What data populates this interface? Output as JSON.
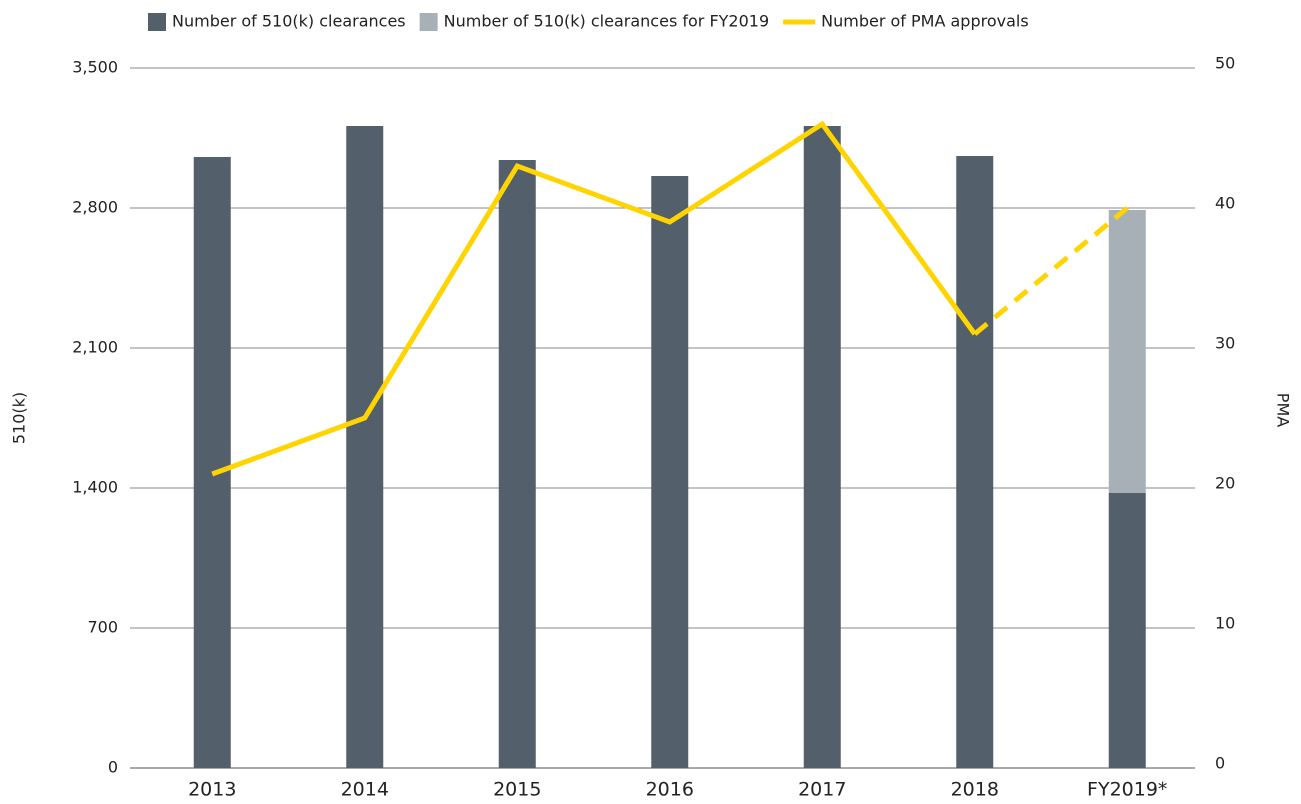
{
  "chart_data": {
    "type": "bar",
    "categories": [
      "2013",
      "2014",
      "2015",
      "2016",
      "2017",
      "2018",
      "FY2019*"
    ],
    "series": [
      {
        "name": "Number of 510(k) clearances",
        "color": "#535f6a",
        "values": [
          3055,
          3210,
          3040,
          2960,
          3210,
          3060,
          1375
        ]
      },
      {
        "name": "Number of 510(k) clearances for FY2019",
        "color": "#a7b0b6",
        "values": [
          null,
          null,
          null,
          null,
          null,
          null,
          1415
        ]
      },
      {
        "name": "Number of PMA approvals",
        "color": "#ffd400",
        "type": "line",
        "axis": "y2",
        "values": [
          21,
          25,
          43,
          39,
          46,
          31,
          40
        ],
        "projected": [
          false,
          false,
          false,
          false,
          false,
          false,
          true
        ]
      }
    ],
    "stacked": true,
    "ylabel": "510(k)",
    "y2label": "PMA",
    "ylim": [
      0,
      3500
    ],
    "yticks": [
      0,
      {
        "value": 700,
        "label": "700"
      },
      {
        "value": 1400,
        "label": "1,400"
      },
      {
        "value": 2100,
        "label": "2,100"
      },
      {
        "value": 2800,
        "label": "2,800"
      },
      {
        "value": 3500,
        "label": "3,500"
      }
    ],
    "y2lim": [
      0,
      50
    ],
    "y2ticks": [
      0,
      10,
      20,
      30,
      40,
      50
    ],
    "grid": true,
    "legend": "top"
  }
}
